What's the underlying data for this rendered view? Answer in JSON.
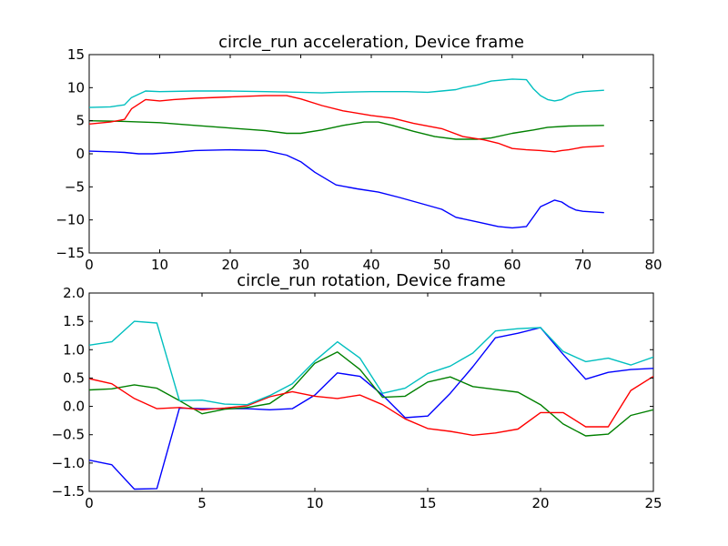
{
  "chart_data": [
    {
      "type": "line",
      "title": "circle_run acceleration, Device frame",
      "xlabel": "",
      "ylabel": "",
      "xlim": [
        0,
        80
      ],
      "ylim": [
        -15,
        15
      ],
      "xticks": [
        0,
        10,
        20,
        30,
        40,
        50,
        60,
        70,
        80
      ],
      "xtick_labels": [
        "0",
        "10",
        "20",
        "30",
        "40",
        "50",
        "60",
        "70",
        "80"
      ],
      "yticks": [
        -15,
        -10,
        -5,
        0,
        5,
        10,
        15
      ],
      "ytick_labels": [
        "−15",
        "−10",
        "−5",
        "0",
        "5",
        "10",
        "15"
      ],
      "grid": false,
      "series": [
        {
          "color": "#0000ff",
          "x": [
            0,
            3,
            5,
            7,
            9,
            12,
            15,
            20,
            25,
            28,
            30,
            32,
            35,
            38,
            41,
            44,
            47,
            50,
            52,
            55,
            58,
            60,
            62,
            63,
            64,
            65,
            66,
            67,
            68,
            69,
            70,
            73
          ],
          "y": [
            0.4,
            0.3,
            0.2,
            0.0,
            0.0,
            0.2,
            0.5,
            0.6,
            0.5,
            -0.2,
            -1.2,
            -2.8,
            -4.7,
            -5.3,
            -5.8,
            -6.6,
            -7.5,
            -8.4,
            -9.6,
            -10.3,
            -11.0,
            -11.2,
            -11.0,
            -9.5,
            -8.0,
            -7.5,
            -7.0,
            -7.3,
            -8.0,
            -8.5,
            -8.7,
            -8.9
          ]
        },
        {
          "color": "#008000",
          "x": [
            0,
            5,
            10,
            15,
            20,
            25,
            28,
            30,
            33,
            36,
            39,
            41,
            43,
            46,
            49,
            52,
            55,
            57,
            60,
            63,
            65,
            68,
            73
          ],
          "y": [
            5.0,
            4.9,
            4.7,
            4.3,
            3.9,
            3.5,
            3.1,
            3.1,
            3.6,
            4.3,
            4.8,
            4.8,
            4.3,
            3.4,
            2.6,
            2.2,
            2.2,
            2.4,
            3.1,
            3.6,
            4.0,
            4.2,
            4.3
          ]
        },
        {
          "color": "#ff0000",
          "x": [
            0,
            3,
            5,
            6,
            8,
            10,
            12,
            15,
            20,
            25,
            28,
            30,
            33,
            36,
            40,
            43,
            46,
            50,
            53,
            56,
            58,
            60,
            62,
            64,
            66,
            67,
            68,
            70,
            73
          ],
          "y": [
            4.5,
            4.8,
            5.2,
            6.8,
            8.2,
            8.0,
            8.2,
            8.4,
            8.6,
            8.8,
            8.8,
            8.3,
            7.3,
            6.5,
            5.8,
            5.4,
            4.6,
            3.8,
            2.6,
            2.1,
            1.6,
            0.8,
            0.6,
            0.5,
            0.3,
            0.5,
            0.6,
            1.0,
            1.2
          ]
        },
        {
          "color": "#00bfbf",
          "x": [
            0,
            3,
            5,
            6,
            8,
            10,
            15,
            20,
            25,
            30,
            33,
            35,
            40,
            45,
            48,
            50,
            52,
            53,
            55,
            57,
            60,
            62,
            63,
            64,
            65,
            66,
            67,
            68,
            69,
            70,
            73
          ],
          "y": [
            7.0,
            7.1,
            7.4,
            8.5,
            9.5,
            9.4,
            9.5,
            9.5,
            9.4,
            9.3,
            9.2,
            9.3,
            9.4,
            9.4,
            9.3,
            9.5,
            9.7,
            10.0,
            10.4,
            11.0,
            11.3,
            11.2,
            9.8,
            8.8,
            8.2,
            8.0,
            8.2,
            8.8,
            9.2,
            9.4,
            9.6
          ]
        }
      ]
    },
    {
      "type": "line",
      "title": "circle_run rotation, Device frame",
      "xlabel": "",
      "ylabel": "",
      "xlim": [
        0,
        25
      ],
      "ylim": [
        -1.5,
        2.0
      ],
      "xticks": [
        0,
        5,
        10,
        15,
        20,
        25
      ],
      "xtick_labels": [
        "0",
        "5",
        "10",
        "15",
        "20",
        "25"
      ],
      "yticks": [
        -1.5,
        -1.0,
        -0.5,
        0.0,
        0.5,
        1.0,
        1.5,
        2.0
      ],
      "ytick_labels": [
        "−1.5",
        "−1.0",
        "−0.5",
        "0.0",
        "0.5",
        "1.0",
        "1.5",
        "2.0"
      ],
      "grid": false,
      "series": [
        {
          "color": "#0000ff",
          "x": [
            0,
            1,
            2,
            3,
            4,
            5,
            6,
            7,
            8,
            9,
            10,
            11,
            12,
            13,
            14,
            15,
            16,
            17,
            18,
            19,
            20,
            21,
            22,
            23,
            24,
            25
          ],
          "y": [
            -0.95,
            -1.03,
            -1.46,
            -1.45,
            -0.03,
            -0.04,
            -0.04,
            -0.04,
            -0.06,
            -0.04,
            0.2,
            0.59,
            0.53,
            0.2,
            -0.2,
            -0.17,
            0.23,
            0.7,
            1.21,
            1.29,
            1.39,
            0.92,
            0.48,
            0.6,
            0.65,
            0.67
          ]
        },
        {
          "color": "#008000",
          "x": [
            0,
            1,
            2,
            3,
            4,
            5,
            6,
            7,
            8,
            9,
            10,
            11,
            12,
            13,
            14,
            15,
            16,
            17,
            18,
            19,
            20,
            21,
            22,
            23,
            24,
            25
          ],
          "y": [
            0.29,
            0.31,
            0.38,
            0.32,
            0.1,
            -0.13,
            -0.05,
            -0.02,
            0.05,
            0.32,
            0.76,
            0.96,
            0.65,
            0.16,
            0.18,
            0.43,
            0.52,
            0.35,
            0.3,
            0.25,
            0.03,
            -0.31,
            -0.52,
            -0.49,
            -0.16,
            -0.06
          ]
        },
        {
          "color": "#ff0000",
          "x": [
            0,
            1,
            2,
            3,
            4,
            5,
            6,
            7,
            8,
            9,
            10,
            11,
            12,
            13,
            14,
            15,
            16,
            17,
            18,
            19,
            20,
            21,
            22,
            23,
            24,
            25
          ],
          "y": [
            0.49,
            0.4,
            0.14,
            -0.04,
            -0.02,
            -0.06,
            -0.03,
            0.01,
            0.17,
            0.26,
            0.18,
            0.14,
            0.2,
            0.03,
            -0.22,
            -0.39,
            -0.44,
            -0.51,
            -0.47,
            -0.4,
            -0.11,
            -0.11,
            -0.36,
            -0.36,
            0.28,
            0.53
          ]
        },
        {
          "color": "#00bfbf",
          "x": [
            0,
            1,
            2,
            3,
            4,
            5,
            6,
            7,
            8,
            9,
            10,
            11,
            12,
            13,
            14,
            15,
            16,
            17,
            18,
            19,
            20,
            21,
            22,
            23,
            24,
            25
          ],
          "y": [
            1.08,
            1.14,
            1.5,
            1.47,
            0.1,
            0.11,
            0.04,
            0.03,
            0.19,
            0.4,
            0.8,
            1.14,
            0.85,
            0.23,
            0.32,
            0.58,
            0.71,
            0.94,
            1.33,
            1.37,
            1.39,
            0.97,
            0.79,
            0.85,
            0.73,
            0.87
          ]
        }
      ]
    }
  ]
}
